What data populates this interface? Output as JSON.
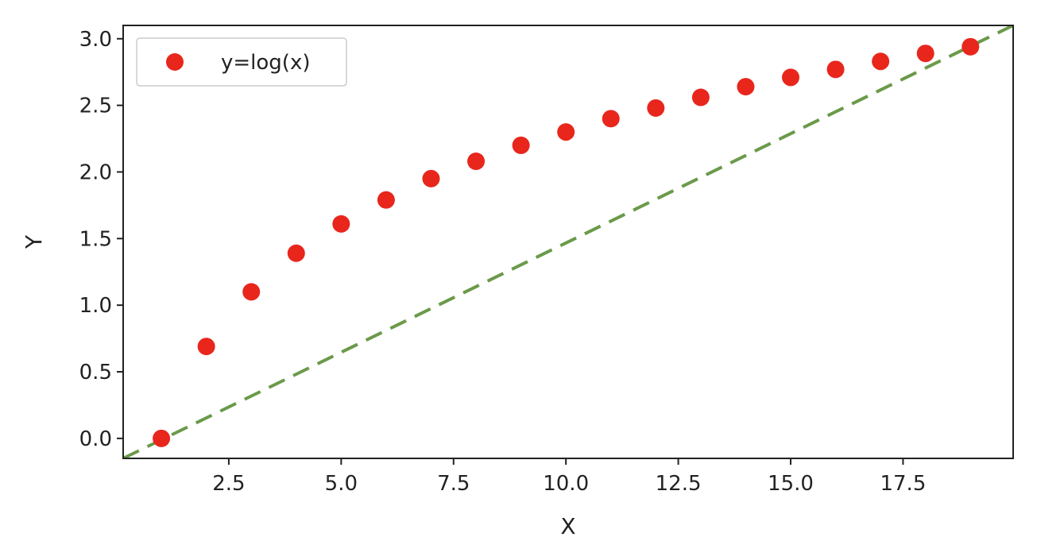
{
  "chart_data": {
    "type": "scatter",
    "xlabel": "X",
    "ylabel": "Y",
    "xlim": [
      0.15,
      19.95
    ],
    "ylim": [
      -0.15,
      3.1
    ],
    "xticks": [
      2.5,
      5.0,
      7.5,
      10.0,
      12.5,
      15.0,
      17.5
    ],
    "xtick_labels": [
      "2.5",
      "5.0",
      "7.5",
      "10.0",
      "12.5",
      "15.0",
      "17.5"
    ],
    "yticks": [
      0.0,
      0.5,
      1.0,
      1.5,
      2.0,
      2.5,
      3.0
    ],
    "ytick_labels": [
      "0.0",
      "0.5",
      "1.0",
      "1.5",
      "2.0",
      "2.5",
      "3.0"
    ],
    "grid": false,
    "legend_position": "top-left",
    "series": [
      {
        "name": "y=log(x)",
        "kind": "scatter",
        "color": "#e8261c",
        "x": [
          1,
          2,
          3,
          4,
          5,
          6,
          7,
          8,
          9,
          10,
          11,
          12,
          13,
          14,
          15,
          16,
          17,
          18,
          19
        ],
        "y": [
          0.0,
          0.69,
          1.1,
          1.39,
          1.61,
          1.79,
          1.95,
          2.08,
          2.2,
          2.3,
          2.4,
          2.48,
          2.56,
          2.64,
          2.71,
          2.77,
          2.83,
          2.89,
          2.94
        ]
      },
      {
        "kind": "line",
        "style": "dashed",
        "color": "#6a9a4a",
        "x": [
          0.15,
          19.95
        ],
        "y": [
          -0.15,
          3.1
        ]
      }
    ]
  }
}
